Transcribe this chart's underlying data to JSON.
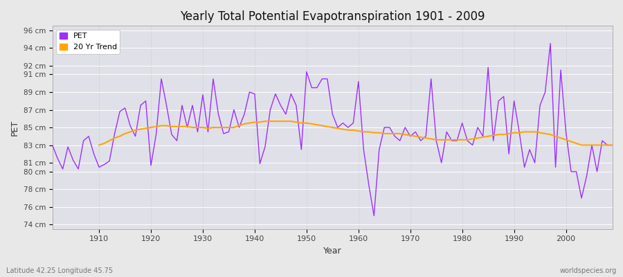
{
  "title": "Yearly Total Potential Evapotranspiration 1901 - 2009",
  "xlabel": "Year",
  "ylabel": "PET",
  "bottom_left_label": "Latitude 42.25 Longitude 45.75",
  "bottom_right_label": "worldspecies.org",
  "pet_color": "#9B30FF",
  "trend_color": "#FFA500",
  "background_color": "#E8E8E8",
  "plot_bg_color": "#E0E0E8",
  "ylim": [
    73.5,
    96.5
  ],
  "ytick_labels": [
    "74 cm",
    "76 cm",
    "78 cm",
    "80 cm",
    "81 cm",
    "83 cm",
    "85 cm",
    "87 cm",
    "89 cm",
    "91 cm",
    "92 cm",
    "94 cm",
    "96 cm"
  ],
  "ytick_values": [
    74,
    76,
    78,
    80,
    81,
    83,
    85,
    87,
    89,
    91,
    92,
    94,
    96
  ],
  "xtick_values": [
    1910,
    1920,
    1930,
    1940,
    1950,
    1960,
    1970,
    1980,
    1990,
    2000
  ],
  "years": [
    1901,
    1902,
    1903,
    1904,
    1905,
    1906,
    1907,
    1908,
    1909,
    1910,
    1911,
    1912,
    1913,
    1914,
    1915,
    1916,
    1917,
    1918,
    1919,
    1920,
    1921,
    1922,
    1923,
    1924,
    1925,
    1926,
    1927,
    1928,
    1929,
    1930,
    1931,
    1932,
    1933,
    1934,
    1935,
    1936,
    1937,
    1938,
    1939,
    1940,
    1941,
    1942,
    1943,
    1944,
    1945,
    1946,
    1947,
    1948,
    1949,
    1950,
    1951,
    1952,
    1953,
    1954,
    1955,
    1956,
    1957,
    1958,
    1959,
    1960,
    1961,
    1962,
    1963,
    1964,
    1965,
    1966,
    1967,
    1968,
    1969,
    1970,
    1971,
    1972,
    1973,
    1974,
    1975,
    1976,
    1977,
    1978,
    1979,
    1980,
    1981,
    1982,
    1983,
    1984,
    1985,
    1986,
    1987,
    1988,
    1989,
    1990,
    1991,
    1992,
    1993,
    1994,
    1995,
    1996,
    1997,
    1998,
    1999,
    2000,
    2001,
    2002,
    2003,
    2004,
    2005,
    2006,
    2007,
    2008,
    2009
  ],
  "pet_values": [
    83.0,
    81.5,
    80.3,
    82.8,
    81.3,
    80.3,
    83.5,
    84.0,
    82.0,
    80.5,
    80.8,
    81.2,
    84.3,
    86.8,
    87.2,
    85.2,
    84.0,
    87.5,
    88.0,
    80.7,
    84.2,
    90.5,
    87.5,
    84.2,
    83.5,
    87.5,
    85.0,
    87.5,
    84.5,
    88.7,
    84.5,
    90.5,
    86.5,
    84.3,
    84.5,
    87.0,
    85.0,
    86.5,
    89.0,
    88.8,
    80.9,
    82.8,
    87.0,
    88.8,
    87.5,
    86.5,
    88.8,
    87.5,
    82.5,
    91.3,
    89.5,
    89.5,
    90.5,
    90.5,
    86.5,
    85.0,
    85.5,
    85.0,
    85.5,
    90.2,
    82.5,
    78.5,
    75.0,
    82.5,
    85.0,
    85.0,
    84.0,
    83.5,
    85.0,
    84.0,
    84.5,
    83.5,
    84.0,
    90.5,
    83.5,
    81.0,
    84.5,
    83.5,
    83.5,
    85.5,
    83.5,
    83.0,
    85.0,
    84.0,
    91.8,
    83.5,
    88.0,
    88.5,
    82.0,
    88.0,
    84.5,
    80.5,
    82.5,
    81.0,
    87.5,
    89.0,
    94.5,
    80.5,
    91.5,
    84.5,
    80.0,
    80.0,
    77.0,
    79.5,
    83.0,
    80.0,
    83.5,
    83.0,
    83.0
  ],
  "trend_values_by_year": {
    "1910": 83.0,
    "1911": 83.2,
    "1912": 83.5,
    "1913": 83.8,
    "1914": 84.0,
    "1915": 84.3,
    "1916": 84.5,
    "1917": 84.7,
    "1918": 84.8,
    "1919": 84.9,
    "1920": 85.0,
    "1921": 85.1,
    "1922": 85.2,
    "1923": 85.2,
    "1924": 85.1,
    "1925": 85.1,
    "1926": 85.1,
    "1927": 85.1,
    "1928": 85.0,
    "1929": 85.0,
    "1930": 85.0,
    "1931": 84.9,
    "1932": 85.0,
    "1933": 85.0,
    "1934": 85.0,
    "1935": 85.0,
    "1936": 85.0,
    "1937": 85.2,
    "1938": 85.4,
    "1939": 85.5,
    "1940": 85.6,
    "1941": 85.6,
    "1942": 85.7,
    "1943": 85.7,
    "1944": 85.7,
    "1945": 85.7,
    "1946": 85.7,
    "1947": 85.7,
    "1948": 85.6,
    "1949": 85.5,
    "1950": 85.5,
    "1951": 85.4,
    "1952": 85.3,
    "1953": 85.2,
    "1954": 85.1,
    "1955": 85.0,
    "1956": 84.9,
    "1957": 84.8,
    "1958": 84.7,
    "1959": 84.7,
    "1960": 84.6,
    "1961": 84.5,
    "1962": 84.5,
    "1963": 84.4,
    "1964": 84.4,
    "1965": 84.3,
    "1966": 84.3,
    "1967": 84.3,
    "1968": 84.3,
    "1969": 84.2,
    "1970": 84.1,
    "1971": 84.0,
    "1972": 83.9,
    "1973": 83.8,
    "1974": 83.7,
    "1975": 83.6,
    "1976": 83.6,
    "1977": 83.6,
    "1978": 83.6,
    "1979": 83.6,
    "1980": 83.6,
    "1981": 83.6,
    "1982": 83.7,
    "1983": 83.8,
    "1984": 83.9,
    "1985": 84.0,
    "1986": 84.1,
    "1987": 84.2,
    "1988": 84.2,
    "1989": 84.3,
    "1990": 84.4,
    "1991": 84.4,
    "1992": 84.5,
    "1993": 84.5,
    "1994": 84.5,
    "1995": 84.4,
    "1996": 84.3,
    "1997": 84.2,
    "1998": 84.0,
    "1999": 83.8,
    "2000": 83.6,
    "2001": 83.4,
    "2002": 83.2,
    "2003": 83.0,
    "2004": 83.0,
    "2005": 83.0,
    "2006": 83.0,
    "2007": 83.0,
    "2008": 83.0,
    "2009": 83.0
  }
}
